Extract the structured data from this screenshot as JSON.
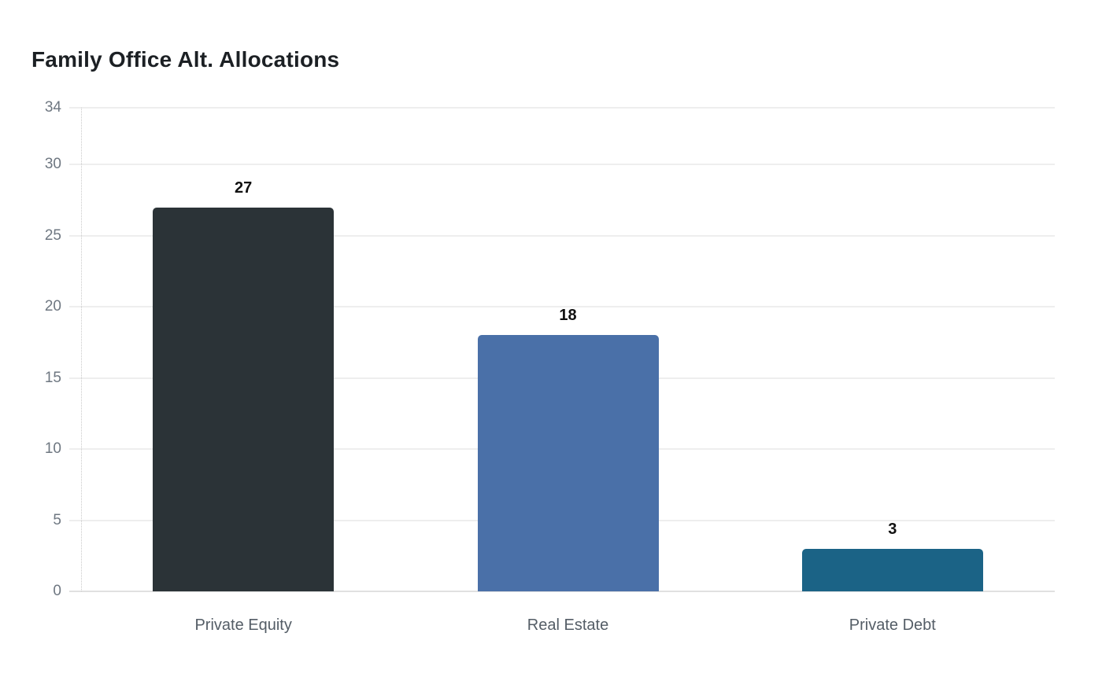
{
  "header": {
    "title": "Family Office Alt. Allocations"
  },
  "chart_data": {
    "type": "bar",
    "title": "Family Office Alt. Allocations",
    "categories": [
      "Private Equity",
      "Real Estate",
      "Private Debt"
    ],
    "values": [
      27,
      18,
      3
    ],
    "value_labels": [
      "27",
      "18",
      "3"
    ],
    "bar_colors": [
      "#2b3337",
      "#4a70a8",
      "#1b6386"
    ],
    "yticks": [
      0,
      5,
      10,
      15,
      20,
      25,
      30,
      34
    ],
    "ylim": [
      0,
      34
    ],
    "xlabel": "",
    "ylabel": "",
    "grid": "horizontal",
    "legend": "none",
    "background": "#ffffff",
    "style": {
      "title_color": "#1c2024",
      "tick_label_color": "#6e7781",
      "category_label_color": "#545d66",
      "value_label_color": "#111111",
      "gridline_color": "#eeeeee",
      "zero_line_color": "#e0e0e0",
      "axis_line_color": "#c9c9c9"
    }
  }
}
